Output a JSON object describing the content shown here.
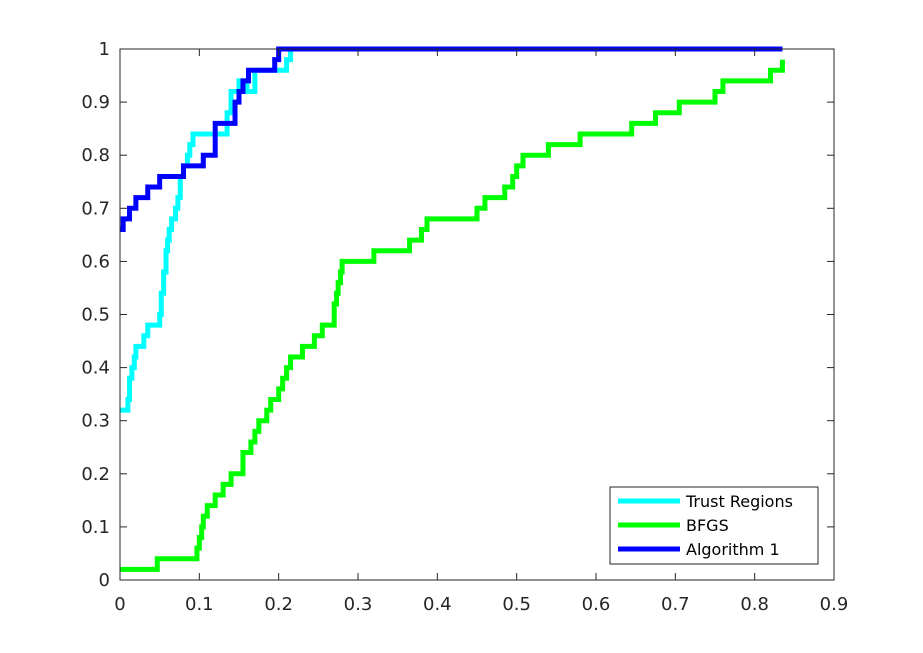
{
  "chart_data": {
    "type": "line",
    "title": "",
    "xlabel": "",
    "ylabel": "",
    "xlim": [
      0,
      0.9
    ],
    "ylim": [
      0,
      1
    ],
    "x_ticks": [
      "0",
      "0.1",
      "0.2",
      "0.3",
      "0.4",
      "0.5",
      "0.6",
      "0.7",
      "0.8",
      "0.9"
    ],
    "y_ticks": [
      "0",
      "0.1",
      "0.2",
      "0.3",
      "0.4",
      "0.5",
      "0.6",
      "0.7",
      "0.8",
      "0.9",
      "1"
    ],
    "grid": false,
    "legend_position": "bottom-right",
    "step": true,
    "series": [
      {
        "name": "Trust Regions",
        "color": "#00ffff",
        "points": [
          [
            0,
            0.32
          ],
          [
            0.01,
            0.34
          ],
          [
            0.012,
            0.38
          ],
          [
            0.015,
            0.4
          ],
          [
            0.018,
            0.42
          ],
          [
            0.02,
            0.44
          ],
          [
            0.03,
            0.46
          ],
          [
            0.035,
            0.48
          ],
          [
            0.05,
            0.5
          ],
          [
            0.052,
            0.54
          ],
          [
            0.055,
            0.58
          ],
          [
            0.058,
            0.62
          ],
          [
            0.06,
            0.64
          ],
          [
            0.062,
            0.66
          ],
          [
            0.065,
            0.68
          ],
          [
            0.07,
            0.7
          ],
          [
            0.073,
            0.72
          ],
          [
            0.076,
            0.76
          ],
          [
            0.08,
            0.78
          ],
          [
            0.085,
            0.8
          ],
          [
            0.088,
            0.82
          ],
          [
            0.092,
            0.84
          ],
          [
            0.135,
            0.88
          ],
          [
            0.14,
            0.92
          ],
          [
            0.15,
            0.94
          ],
          [
            0.16,
            0.92
          ],
          [
            0.17,
            0.96
          ],
          [
            0.21,
            0.98
          ],
          [
            0.215,
            1.0
          ],
          [
            0.835,
            1.0
          ]
        ]
      },
      {
        "name": "BFGS",
        "color": "#00ff00",
        "points": [
          [
            0,
            0.02
          ],
          [
            0.047,
            0.04
          ],
          [
            0.097,
            0.06
          ],
          [
            0.1,
            0.08
          ],
          [
            0.103,
            0.1
          ],
          [
            0.105,
            0.12
          ],
          [
            0.11,
            0.14
          ],
          [
            0.12,
            0.16
          ],
          [
            0.13,
            0.18
          ],
          [
            0.14,
            0.2
          ],
          [
            0.155,
            0.24
          ],
          [
            0.165,
            0.26
          ],
          [
            0.17,
            0.28
          ],
          [
            0.175,
            0.3
          ],
          [
            0.185,
            0.32
          ],
          [
            0.19,
            0.34
          ],
          [
            0.2,
            0.36
          ],
          [
            0.205,
            0.38
          ],
          [
            0.21,
            0.4
          ],
          [
            0.215,
            0.42
          ],
          [
            0.23,
            0.44
          ],
          [
            0.245,
            0.46
          ],
          [
            0.255,
            0.48
          ],
          [
            0.27,
            0.52
          ],
          [
            0.273,
            0.54
          ],
          [
            0.275,
            0.56
          ],
          [
            0.278,
            0.58
          ],
          [
            0.28,
            0.6
          ],
          [
            0.32,
            0.62
          ],
          [
            0.365,
            0.64
          ],
          [
            0.38,
            0.66
          ],
          [
            0.387,
            0.68
          ],
          [
            0.45,
            0.7
          ],
          [
            0.46,
            0.72
          ],
          [
            0.485,
            0.74
          ],
          [
            0.495,
            0.76
          ],
          [
            0.5,
            0.78
          ],
          [
            0.508,
            0.8
          ],
          [
            0.54,
            0.82
          ],
          [
            0.58,
            0.84
          ],
          [
            0.645,
            0.86
          ],
          [
            0.675,
            0.88
          ],
          [
            0.705,
            0.9
          ],
          [
            0.75,
            0.92
          ],
          [
            0.76,
            0.94
          ],
          [
            0.82,
            0.96
          ],
          [
            0.835,
            0.98
          ]
        ]
      },
      {
        "name": "Algorithm 1",
        "color": "#0000ff",
        "points": [
          [
            0,
            0.66
          ],
          [
            0.004,
            0.68
          ],
          [
            0.012,
            0.7
          ],
          [
            0.02,
            0.72
          ],
          [
            0.035,
            0.74
          ],
          [
            0.05,
            0.76
          ],
          [
            0.08,
            0.78
          ],
          [
            0.105,
            0.8
          ],
          [
            0.12,
            0.86
          ],
          [
            0.145,
            0.9
          ],
          [
            0.15,
            0.92
          ],
          [
            0.155,
            0.94
          ],
          [
            0.162,
            0.96
          ],
          [
            0.195,
            0.98
          ],
          [
            0.2,
            1.0
          ],
          [
            0.835,
            1.0
          ]
        ]
      }
    ]
  }
}
